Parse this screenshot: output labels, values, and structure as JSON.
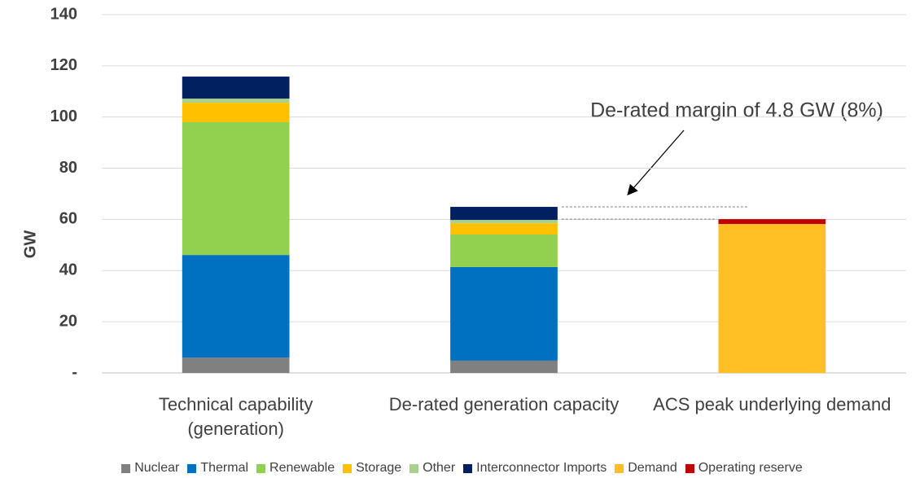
{
  "chart_data": {
    "type": "stacked-bar",
    "y_label": "GW",
    "annotation": "De-rated margin of 4.8 GW (8%)",
    "categories": [
      "Technical capability (generation)",
      "De-rated generation capacity",
      "ACS peak underlying demand"
    ],
    "series": [
      {
        "name": "Nuclear",
        "color": "#808080",
        "values": [
          6.0,
          4.8,
          null
        ]
      },
      {
        "name": "Thermal",
        "color": "#0070c0",
        "values": [
          40.1,
          36.6,
          null
        ]
      },
      {
        "name": "Renewable",
        "color": "#92d050",
        "values": [
          51.9,
          12.7,
          null
        ]
      },
      {
        "name": "Storage",
        "color": "#ffc000",
        "values": [
          7.6,
          4.4,
          null
        ]
      },
      {
        "name": "Other",
        "color": "#a9d18e",
        "values": [
          1.6,
          1.3,
          null
        ]
      },
      {
        "name": "Interconnector Imports",
        "color": "#002060",
        "values": [
          8.6,
          5.1,
          null
        ]
      },
      {
        "name": "Demand",
        "color": "#ffc026",
        "values": [
          null,
          null,
          58.2
        ]
      },
      {
        "name": "Operating reserve",
        "color": "#c00000",
        "values": [
          null,
          null,
          1.9
        ]
      }
    ],
    "ylim": [
      0,
      140
    ],
    "yticks": [
      {
        "value": 0,
        "label": "-"
      },
      20,
      40,
      60,
      80,
      100,
      120,
      140
    ],
    "grid": true
  }
}
